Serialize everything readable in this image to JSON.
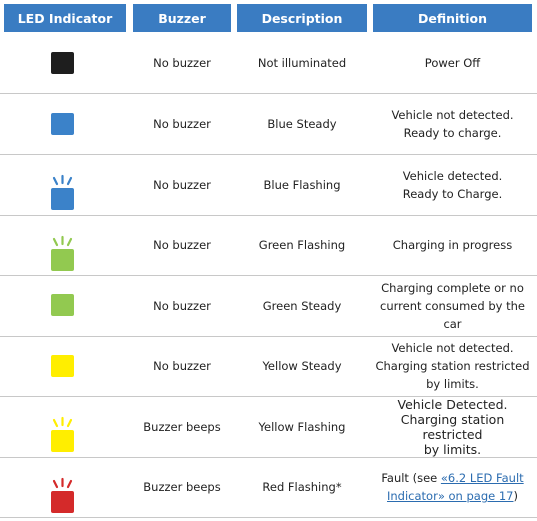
{
  "headers": [
    "LED Indicator",
    "Buzzer",
    "Description",
    "Definition"
  ],
  "rows": [
    {
      "led_color": "#1e1e1e",
      "flashing": false,
      "buzzer": "No buzzer",
      "description": "Not illuminated",
      "definition": "Power Off"
    },
    {
      "led_color": "#3b82c9",
      "flashing": false,
      "buzzer": "No buzzer",
      "description": "Blue Steady",
      "definition": "Vehicle not  detected.\nReady to charge."
    },
    {
      "led_color": "#3b82c9",
      "flashing": true,
      "buzzer": "No buzzer",
      "description": "Blue Flashing",
      "definition": "Vehicle detected.\nReady to Charge."
    },
    {
      "led_color": "#92c950",
      "flashing": true,
      "buzzer": "No buzzer",
      "description": "Green Flashing",
      "definition": "Charging in progress"
    },
    {
      "led_color": "#92c950",
      "flashing": false,
      "buzzer": "No buzzer",
      "description": "Green Steady",
      "definition": "Charging complete or no\ncurrent consumed by the car"
    },
    {
      "led_color": "#ffee00",
      "flashing": false,
      "buzzer": "No buzzer",
      "description": "Yellow Steady",
      "definition": "Vehicle not detected.\nCharging station restricted\nby limits."
    },
    {
      "led_color": "#ffee00",
      "flashing": true,
      "buzzer": "Buzzer beeps",
      "description": "Yellow Flashing",
      "definition": "Vehicle Detected.\nCharging station restricted\nby limits."
    },
    {
      "led_color": "#d42a2a",
      "flashing": true,
      "buzzer": "Buzzer beeps",
      "description": "Red Flashing*",
      "definition": "",
      "definition_prefix": "Fault  (see ",
      "definition_link": "«6.2 LED Fault\nIndicator» on page 17",
      "definition_suffix": ")"
    }
  ]
}
